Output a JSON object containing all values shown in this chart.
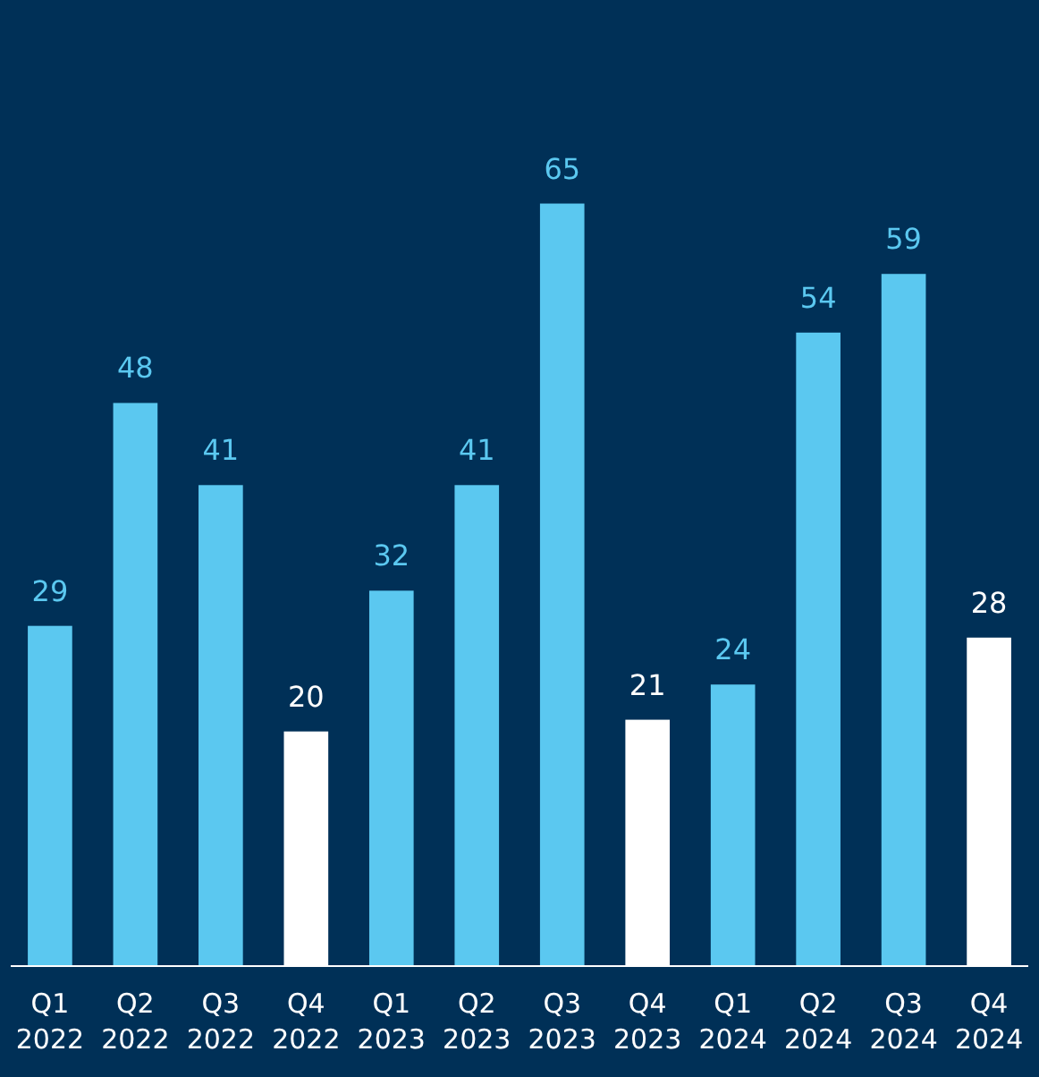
{
  "chart_data": {
    "type": "bar",
    "categories": [
      "Q1 2022",
      "Q2 2022",
      "Q3 2022",
      "Q4 2022",
      "Q1 2023",
      "Q2 2023",
      "Q3 2023",
      "Q4 2023",
      "Q1 2024",
      "Q2 2024",
      "Q3 2024",
      "Q4 2024"
    ],
    "values": [
      29,
      48,
      41,
      20,
      32,
      41,
      65,
      21,
      24,
      54,
      59,
      28
    ],
    "colors": [
      "#5bc8f0",
      "#5bc8f0",
      "#5bc8f0",
      "#ffffff",
      "#5bc8f0",
      "#5bc8f0",
      "#5bc8f0",
      "#ffffff",
      "#5bc8f0",
      "#5bc8f0",
      "#5bc8f0",
      "#ffffff"
    ],
    "data_labels": true
  }
}
